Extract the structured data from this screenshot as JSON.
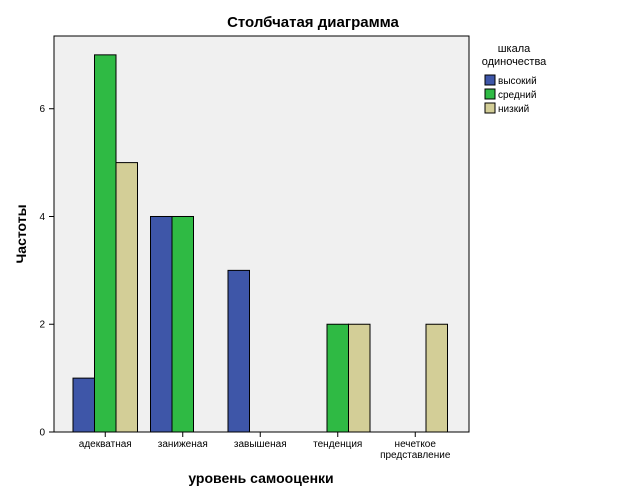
{
  "chart_data": {
    "type": "bar",
    "title": "Столбчатая диаграмма",
    "xlabel": "уровень самооценки",
    "ylabel": "Частоты",
    "categories": [
      [
        "адекватная"
      ],
      [
        "заниженая"
      ],
      [
        "завышеная"
      ],
      [
        "тенденция"
      ],
      [
        "нечеткое",
        "представление"
      ]
    ],
    "series": [
      {
        "name": "высокий",
        "color": "#3e56a8",
        "values": [
          1,
          4,
          3,
          0,
          0
        ]
      },
      {
        "name": "средний",
        "color": "#2fba44",
        "values": [
          7,
          4,
          0,
          2,
          0
        ]
      },
      {
        "name": "низкий",
        "color": "#d3ce97",
        "values": [
          5,
          0,
          0,
          2,
          2
        ]
      }
    ],
    "ylim": [
      0,
      7.35
    ],
    "yticks": [
      0,
      2,
      4,
      6
    ],
    "legend": {
      "title": [
        "шкала",
        "одиночества"
      ],
      "position": "right"
    },
    "plot_background": "#f0f0f0",
    "grid": false
  }
}
